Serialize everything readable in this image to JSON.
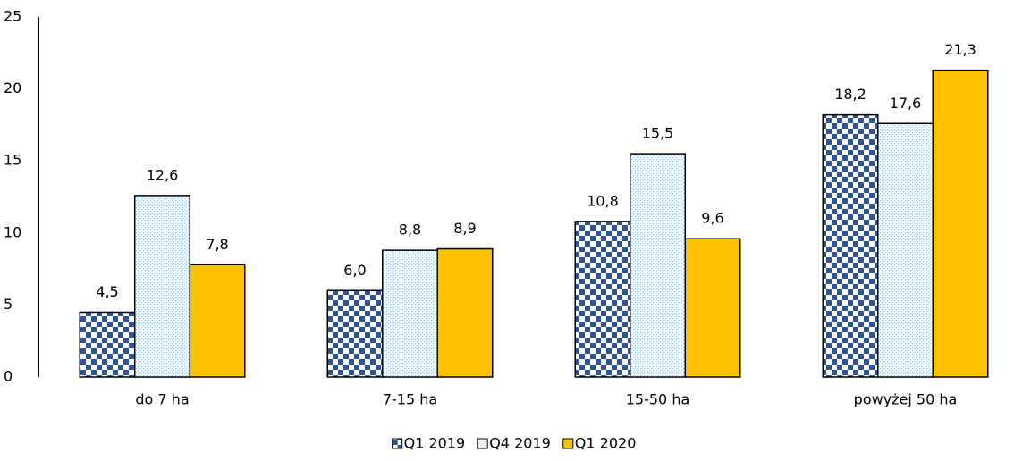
{
  "chart_data": {
    "type": "bar",
    "categories": [
      "do 7 ha",
      "7-15 ha",
      "15-50 ha",
      "powyżej 50 ha"
    ],
    "series": [
      {
        "name": "Q1 2019",
        "color": "#2f5597",
        "pattern": "checker",
        "values": [
          4.5,
          6.0,
          10.8,
          18.2
        ],
        "value_labels": [
          "4,5",
          "6,0",
          "10,8",
          "18,2"
        ]
      },
      {
        "name": "Q4 2019",
        "color": "#9dc3e6",
        "pattern": "dots",
        "values": [
          12.6,
          8.8,
          15.5,
          17.6
        ],
        "value_labels": [
          "12,6",
          "8,8",
          "15,5",
          "17,6"
        ]
      },
      {
        "name": "Q1 2020",
        "color": "#ffc000",
        "pattern": "solid",
        "values": [
          7.8,
          8.9,
          9.6,
          21.3
        ],
        "value_labels": [
          "7,8",
          "8,9",
          "9,6",
          "21,3"
        ]
      }
    ],
    "ylim": [
      0,
      25
    ],
    "yticks": [
      0,
      5,
      10,
      15,
      20,
      25
    ],
    "grid": false,
    "legend": "bottom"
  }
}
